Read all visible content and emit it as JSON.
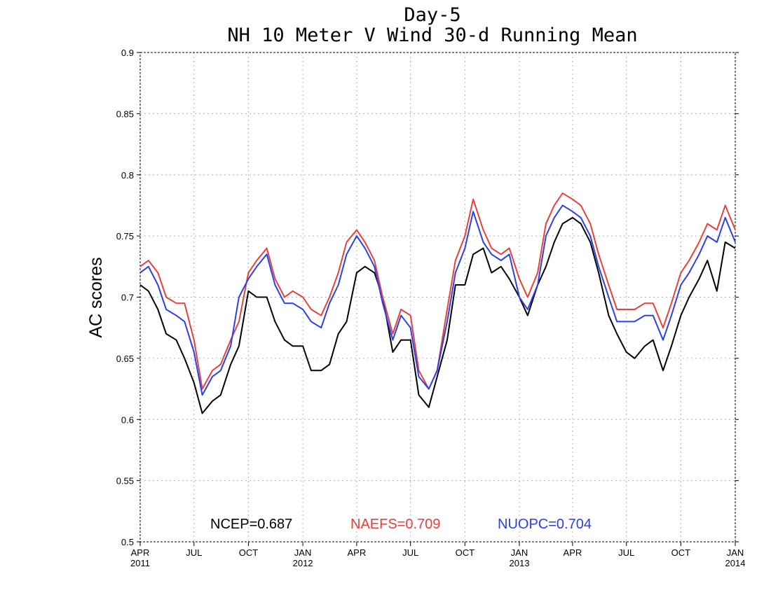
{
  "chart_data": {
    "type": "line",
    "title": "Day-5",
    "subtitle": "NH 10 Meter V Wind 30-d Running Mean",
    "xlabel": "",
    "ylabel": "AC scores",
    "ylim": [
      0.5,
      0.9
    ],
    "yticks": [
      0.5,
      0.55,
      0.6,
      0.65,
      0.7,
      0.75,
      0.8,
      0.85,
      0.9
    ],
    "xlim": [
      "2011-04-01",
      "2014-01-01"
    ],
    "xticks": [
      {
        "date": "2011-04-01",
        "label": "APR",
        "year": "2011"
      },
      {
        "date": "2011-07-01",
        "label": "JUL",
        "year": ""
      },
      {
        "date": "2011-10-01",
        "label": "OCT",
        "year": ""
      },
      {
        "date": "2012-01-01",
        "label": "JAN",
        "year": "2012"
      },
      {
        "date": "2012-04-01",
        "label": "APR",
        "year": ""
      },
      {
        "date": "2012-07-01",
        "label": "JUL",
        "year": ""
      },
      {
        "date": "2012-10-01",
        "label": "OCT",
        "year": ""
      },
      {
        "date": "2013-01-01",
        "label": "JAN",
        "year": "2013"
      },
      {
        "date": "2013-04-01",
        "label": "APR",
        "year": ""
      },
      {
        "date": "2013-07-01",
        "label": "JUL",
        "year": ""
      },
      {
        "date": "2013-10-01",
        "label": "OCT",
        "year": ""
      },
      {
        "date": "2014-01-01",
        "label": "JAN",
        "year": "2014"
      }
    ],
    "grid": true,
    "legend_position": "bottom",
    "x": [
      "2011-04-01",
      "2011-04-15",
      "2011-05-01",
      "2011-05-15",
      "2011-06-01",
      "2011-06-15",
      "2011-07-01",
      "2011-07-15",
      "2011-08-01",
      "2011-08-15",
      "2011-09-01",
      "2011-09-15",
      "2011-10-01",
      "2011-10-15",
      "2011-11-01",
      "2011-11-15",
      "2011-12-01",
      "2011-12-15",
      "2012-01-01",
      "2012-01-15",
      "2012-02-01",
      "2012-02-15",
      "2012-03-01",
      "2012-03-15",
      "2012-04-01",
      "2012-04-15",
      "2012-05-01",
      "2012-05-15",
      "2012-06-01",
      "2012-06-15",
      "2012-07-01",
      "2012-07-15",
      "2012-08-01",
      "2012-08-15",
      "2012-09-01",
      "2012-09-15",
      "2012-10-01",
      "2012-10-15",
      "2012-11-01",
      "2012-11-15",
      "2012-12-01",
      "2012-12-15",
      "2013-01-01",
      "2013-01-15",
      "2013-02-01",
      "2013-02-15",
      "2013-03-01",
      "2013-03-15",
      "2013-04-01",
      "2013-04-15",
      "2013-05-01",
      "2013-05-15",
      "2013-06-01",
      "2013-06-15",
      "2013-07-01",
      "2013-07-15",
      "2013-08-01",
      "2013-08-15",
      "2013-09-01",
      "2013-09-15",
      "2013-10-01",
      "2013-10-15",
      "2013-11-01",
      "2013-11-15",
      "2013-12-01",
      "2013-12-15",
      "2014-01-01"
    ],
    "series": [
      {
        "name": "NCEP",
        "label": "NCEP=0.687",
        "color": "#000000",
        "values": [
          0.71,
          0.705,
          0.69,
          0.67,
          0.665,
          0.65,
          0.63,
          0.605,
          0.615,
          0.62,
          0.645,
          0.66,
          0.705,
          0.7,
          0.7,
          0.68,
          0.665,
          0.66,
          0.66,
          0.64,
          0.64,
          0.645,
          0.67,
          0.68,
          0.72,
          0.725,
          0.72,
          0.7,
          0.655,
          0.665,
          0.665,
          0.62,
          0.61,
          0.635,
          0.665,
          0.71,
          0.71,
          0.735,
          0.74,
          0.72,
          0.725,
          0.715,
          0.7,
          0.685,
          0.71,
          0.725,
          0.745,
          0.76,
          0.765,
          0.76,
          0.745,
          0.72,
          0.685,
          0.67,
          0.655,
          0.65,
          0.66,
          0.665,
          0.64,
          0.66,
          0.685,
          0.7,
          0.715,
          0.73,
          0.705,
          0.745,
          0.74
        ]
      },
      {
        "name": "NAEFS",
        "label": "NAEFS=0.709",
        "color": "#e8403a",
        "values": [
          0.725,
          0.73,
          0.72,
          0.7,
          0.695,
          0.695,
          0.665,
          0.625,
          0.64,
          0.645,
          0.665,
          0.68,
          0.72,
          0.73,
          0.74,
          0.715,
          0.7,
          0.705,
          0.7,
          0.69,
          0.685,
          0.7,
          0.72,
          0.745,
          0.755,
          0.745,
          0.73,
          0.7,
          0.67,
          0.69,
          0.685,
          0.64,
          0.625,
          0.64,
          0.69,
          0.73,
          0.75,
          0.78,
          0.755,
          0.74,
          0.735,
          0.74,
          0.715,
          0.7,
          0.72,
          0.76,
          0.775,
          0.785,
          0.78,
          0.775,
          0.76,
          0.735,
          0.71,
          0.69,
          0.69,
          0.69,
          0.695,
          0.695,
          0.675,
          0.695,
          0.72,
          0.73,
          0.745,
          0.76,
          0.755,
          0.775,
          0.755
        ]
      },
      {
        "name": "NUOPC",
        "label": "NUOPC=0.704",
        "color": "#2b40e8",
        "values": [
          0.72,
          0.725,
          0.71,
          0.69,
          0.685,
          0.68,
          0.655,
          0.62,
          0.635,
          0.64,
          0.66,
          0.7,
          0.715,
          0.725,
          0.735,
          0.71,
          0.695,
          0.695,
          0.69,
          0.68,
          0.675,
          0.695,
          0.71,
          0.735,
          0.75,
          0.74,
          0.725,
          0.695,
          0.665,
          0.685,
          0.675,
          0.635,
          0.625,
          0.64,
          0.68,
          0.72,
          0.74,
          0.77,
          0.745,
          0.735,
          0.73,
          0.735,
          0.7,
          0.69,
          0.71,
          0.75,
          0.765,
          0.775,
          0.77,
          0.765,
          0.75,
          0.725,
          0.7,
          0.68,
          0.68,
          0.68,
          0.685,
          0.685,
          0.665,
          0.685,
          0.71,
          0.72,
          0.735,
          0.75,
          0.745,
          0.765,
          0.745
        ]
      }
    ]
  }
}
